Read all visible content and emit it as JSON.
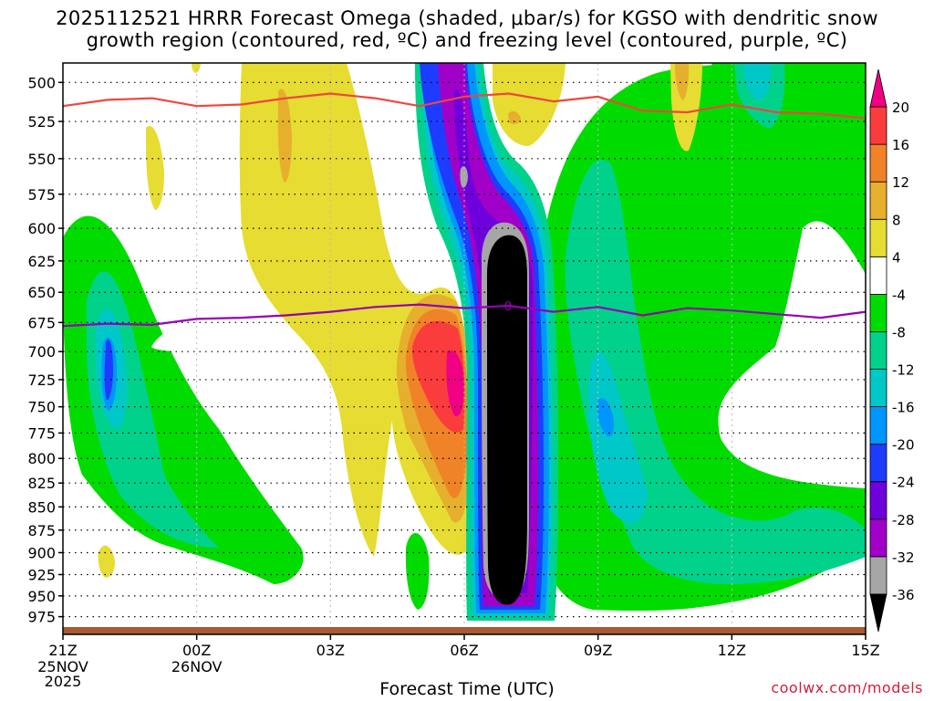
{
  "chart_data": {
    "type": "heatmap",
    "title_line1": "2025112521 HRRR Forecast Omega (shaded, μbar/s) for KGSO with dendritic snow",
    "title_line2": "growth region (contoured, red, ºC) and freezing level (contoured, purple, ºC)",
    "xlabel": "Forecast Time (UTC)",
    "x_ticks": [
      {
        "t": 0,
        "label": "21Z",
        "sub": "25NOV",
        "sub2": "2025"
      },
      {
        "t": 3,
        "label": "00Z",
        "sub": "26NOV"
      },
      {
        "t": 6,
        "label": "03Z"
      },
      {
        "t": 9,
        "label": "06Z"
      },
      {
        "t": 12,
        "label": "09Z"
      },
      {
        "t": 15,
        "label": "12Z"
      },
      {
        "t": 18,
        "label": "15Z"
      }
    ],
    "xlim": [
      0,
      18
    ],
    "ylim": [
      488,
      990
    ],
    "y_ticks": [
      500,
      525,
      550,
      575,
      600,
      625,
      650,
      675,
      700,
      725,
      750,
      775,
      800,
      825,
      850,
      875,
      900,
      925,
      950,
      975
    ],
    "y_scale": "log (pressure, hPa)",
    "grid": true,
    "colorbar": {
      "levels": [
        -36,
        -32,
        -28,
        -24,
        -20,
        -16,
        -12,
        -8,
        -4,
        4,
        8,
        12,
        16,
        20
      ],
      "colors": [
        "#000000",
        "#a6a6a6",
        "#a000c8",
        "#6e00dc",
        "#1e3cff",
        "#0096ff",
        "#00c8c8",
        "#00d28c",
        "#00dc00",
        "#ffffff",
        "#e6dc32",
        "#e6af2d",
        "#f08228",
        "#fa3c3c",
        "#f00082"
      ]
    },
    "series": [
      {
        "name": "dendritic snow growth region",
        "color": "#f0463c",
        "points": [
          [
            0,
            515
          ],
          [
            1,
            511
          ],
          [
            2,
            510
          ],
          [
            3,
            515
          ],
          [
            4,
            514
          ],
          [
            5,
            510
          ],
          [
            6,
            507
          ],
          [
            7,
            510
          ],
          [
            8,
            515
          ],
          [
            9,
            509
          ],
          [
            10,
            507
          ],
          [
            11,
            512
          ],
          [
            12,
            509
          ],
          [
            13,
            518
          ],
          [
            14,
            519
          ],
          [
            15,
            514
          ],
          [
            16,
            519
          ],
          [
            17,
            520
          ],
          [
            18,
            523
          ]
        ]
      },
      {
        "name": "freezing level",
        "color": "#9600b4",
        "label": "0",
        "points": [
          [
            0,
            678
          ],
          [
            1,
            676
          ],
          [
            2,
            677
          ],
          [
            3,
            672
          ],
          [
            4,
            671
          ],
          [
            5,
            669
          ],
          [
            6,
            666
          ],
          [
            7,
            662
          ],
          [
            8,
            660
          ],
          [
            9,
            663
          ],
          [
            10,
            661
          ],
          [
            11,
            666
          ],
          [
            12,
            662
          ],
          [
            13,
            669
          ],
          [
            14,
            663
          ],
          [
            15,
            665
          ],
          [
            16,
            668
          ],
          [
            17,
            671
          ],
          [
            18,
            666
          ]
        ]
      }
    ],
    "terrain_color": "#a85a32"
  },
  "footer": {
    "credit": "coolwx.com/models"
  }
}
